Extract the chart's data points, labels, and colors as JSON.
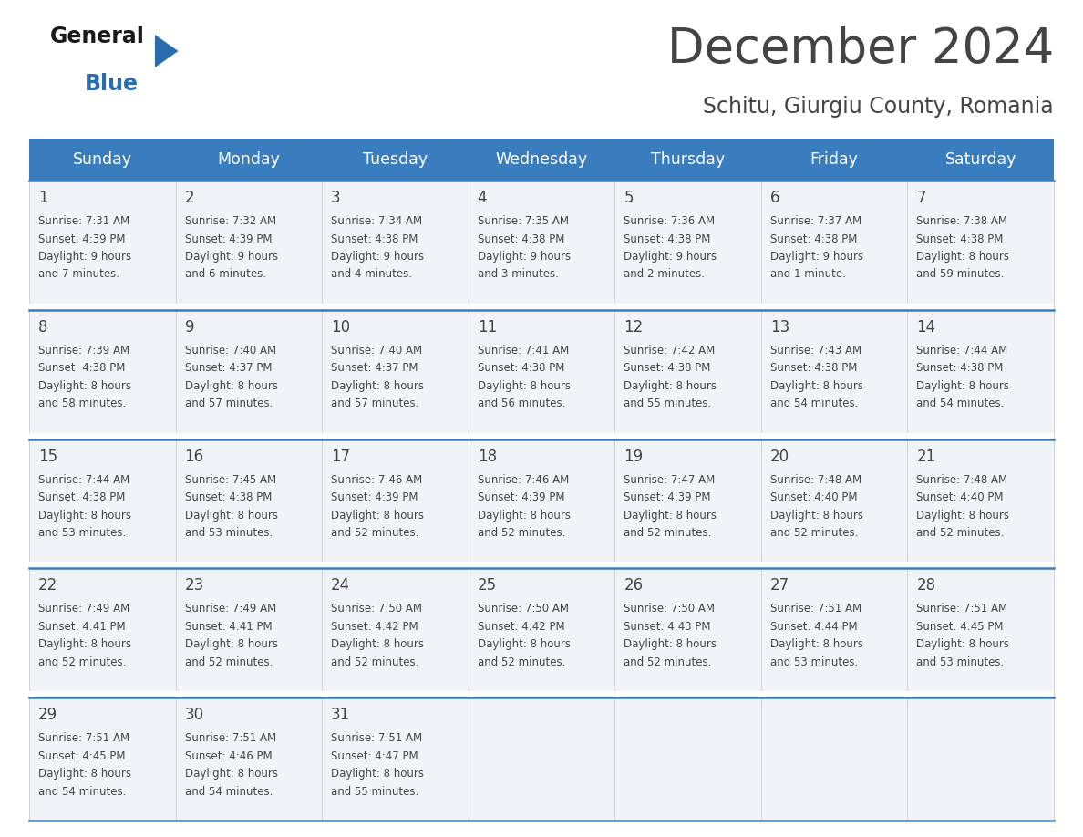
{
  "title": "December 2024",
  "subtitle": "Schitu, Giurgiu County, Romania",
  "header_color": "#3a7dbf",
  "header_text_color": "#ffffff",
  "cell_bg_color": "#f0f4f8",
  "day_headers": [
    "Sunday",
    "Monday",
    "Tuesday",
    "Wednesday",
    "Thursday",
    "Friday",
    "Saturday"
  ],
  "days": [
    {
      "date": 1,
      "sunrise": "7:31 AM",
      "sunset": "4:39 PM",
      "daylight_h": "9 hours",
      "daylight_m": "and 7 minutes."
    },
    {
      "date": 2,
      "sunrise": "7:32 AM",
      "sunset": "4:39 PM",
      "daylight_h": "9 hours",
      "daylight_m": "and 6 minutes."
    },
    {
      "date": 3,
      "sunrise": "7:34 AM",
      "sunset": "4:38 PM",
      "daylight_h": "9 hours",
      "daylight_m": "and 4 minutes."
    },
    {
      "date": 4,
      "sunrise": "7:35 AM",
      "sunset": "4:38 PM",
      "daylight_h": "9 hours",
      "daylight_m": "and 3 minutes."
    },
    {
      "date": 5,
      "sunrise": "7:36 AM",
      "sunset": "4:38 PM",
      "daylight_h": "9 hours",
      "daylight_m": "and 2 minutes."
    },
    {
      "date": 6,
      "sunrise": "7:37 AM",
      "sunset": "4:38 PM",
      "daylight_h": "9 hours",
      "daylight_m": "and 1 minute."
    },
    {
      "date": 7,
      "sunrise": "7:38 AM",
      "sunset": "4:38 PM",
      "daylight_h": "8 hours",
      "daylight_m": "and 59 minutes."
    },
    {
      "date": 8,
      "sunrise": "7:39 AM",
      "sunset": "4:38 PM",
      "daylight_h": "8 hours",
      "daylight_m": "and 58 minutes."
    },
    {
      "date": 9,
      "sunrise": "7:40 AM",
      "sunset": "4:37 PM",
      "daylight_h": "8 hours",
      "daylight_m": "and 57 minutes."
    },
    {
      "date": 10,
      "sunrise": "7:40 AM",
      "sunset": "4:37 PM",
      "daylight_h": "8 hours",
      "daylight_m": "and 57 minutes."
    },
    {
      "date": 11,
      "sunrise": "7:41 AM",
      "sunset": "4:38 PM",
      "daylight_h": "8 hours",
      "daylight_m": "and 56 minutes."
    },
    {
      "date": 12,
      "sunrise": "7:42 AM",
      "sunset": "4:38 PM",
      "daylight_h": "8 hours",
      "daylight_m": "and 55 minutes."
    },
    {
      "date": 13,
      "sunrise": "7:43 AM",
      "sunset": "4:38 PM",
      "daylight_h": "8 hours",
      "daylight_m": "and 54 minutes."
    },
    {
      "date": 14,
      "sunrise": "7:44 AM",
      "sunset": "4:38 PM",
      "daylight_h": "8 hours",
      "daylight_m": "and 54 minutes."
    },
    {
      "date": 15,
      "sunrise": "7:44 AM",
      "sunset": "4:38 PM",
      "daylight_h": "8 hours",
      "daylight_m": "and 53 minutes."
    },
    {
      "date": 16,
      "sunrise": "7:45 AM",
      "sunset": "4:38 PM",
      "daylight_h": "8 hours",
      "daylight_m": "and 53 minutes."
    },
    {
      "date": 17,
      "sunrise": "7:46 AM",
      "sunset": "4:39 PM",
      "daylight_h": "8 hours",
      "daylight_m": "and 52 minutes."
    },
    {
      "date": 18,
      "sunrise": "7:46 AM",
      "sunset": "4:39 PM",
      "daylight_h": "8 hours",
      "daylight_m": "and 52 minutes."
    },
    {
      "date": 19,
      "sunrise": "7:47 AM",
      "sunset": "4:39 PM",
      "daylight_h": "8 hours",
      "daylight_m": "and 52 minutes."
    },
    {
      "date": 20,
      "sunrise": "7:48 AM",
      "sunset": "4:40 PM",
      "daylight_h": "8 hours",
      "daylight_m": "and 52 minutes."
    },
    {
      "date": 21,
      "sunrise": "7:48 AM",
      "sunset": "4:40 PM",
      "daylight_h": "8 hours",
      "daylight_m": "and 52 minutes."
    },
    {
      "date": 22,
      "sunrise": "7:49 AM",
      "sunset": "4:41 PM",
      "daylight_h": "8 hours",
      "daylight_m": "and 52 minutes."
    },
    {
      "date": 23,
      "sunrise": "7:49 AM",
      "sunset": "4:41 PM",
      "daylight_h": "8 hours",
      "daylight_m": "and 52 minutes."
    },
    {
      "date": 24,
      "sunrise": "7:50 AM",
      "sunset": "4:42 PM",
      "daylight_h": "8 hours",
      "daylight_m": "and 52 minutes."
    },
    {
      "date": 25,
      "sunrise": "7:50 AM",
      "sunset": "4:42 PM",
      "daylight_h": "8 hours",
      "daylight_m": "and 52 minutes."
    },
    {
      "date": 26,
      "sunrise": "7:50 AM",
      "sunset": "4:43 PM",
      "daylight_h": "8 hours",
      "daylight_m": "and 52 minutes."
    },
    {
      "date": 27,
      "sunrise": "7:51 AM",
      "sunset": "4:44 PM",
      "daylight_h": "8 hours",
      "daylight_m": "and 53 minutes."
    },
    {
      "date": 28,
      "sunrise": "7:51 AM",
      "sunset": "4:45 PM",
      "daylight_h": "8 hours",
      "daylight_m": "and 53 minutes."
    },
    {
      "date": 29,
      "sunrise": "7:51 AM",
      "sunset": "4:45 PM",
      "daylight_h": "8 hours",
      "daylight_m": "and 54 minutes."
    },
    {
      "date": 30,
      "sunrise": "7:51 AM",
      "sunset": "4:46 PM",
      "daylight_h": "8 hours",
      "daylight_m": "and 54 minutes."
    },
    {
      "date": 31,
      "sunrise": "7:51 AM",
      "sunset": "4:47 PM",
      "daylight_h": "8 hours",
      "daylight_m": "and 55 minutes."
    }
  ],
  "text_color": "#444444",
  "line_color": "#3a7dbf",
  "bg_color": "#ffffff",
  "logo_general_color": "#1a1a1a",
  "logo_blue_color": "#2b6cb0",
  "logo_triangle_color": "#2b6cb0"
}
